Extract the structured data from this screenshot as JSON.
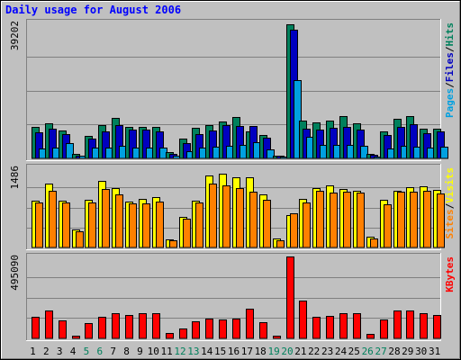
{
  "chart_data": {
    "type": "bar",
    "title": "Daily usage for August 2006",
    "days": [
      "1",
      "2",
      "3",
      "4",
      "5",
      "6",
      "7",
      "8",
      "9",
      "10",
      "11",
      "12",
      "13",
      "14",
      "15",
      "16",
      "17",
      "18",
      "19",
      "20",
      "21",
      "22",
      "23",
      "24",
      "25",
      "26",
      "27",
      "28",
      "29",
      "30",
      "31"
    ],
    "weekend_days": [
      "5",
      "6",
      "12",
      "13",
      "19",
      "20",
      "26",
      "27"
    ],
    "panels": [
      {
        "id": "hits",
        "ymax": 39202,
        "ymax_label": "39202",
        "legend": [
          {
            "text": "Pages",
            "color": "#00a0e0"
          },
          {
            "text": "Files",
            "color": "#0000c0"
          },
          {
            "text": "Hits",
            "color": "#00805c"
          }
        ],
        "series": [
          {
            "name": "Hits",
            "color": "#00805c",
            "values": [
              9000,
              10000,
              8000,
              1200,
              6600,
              9600,
              11600,
              9000,
              9100,
              9100,
              1800,
              5600,
              8800,
              9600,
              10600,
              12000,
              7800,
              6800,
              900,
              38800,
              10800,
              10500,
              10800,
              12100,
              10100,
              1200,
              7700,
              11300,
              12200,
              8500,
              8600
            ]
          },
          {
            "name": "Files",
            "color": "#0000c0",
            "values": [
              7400,
              8500,
              7000,
              900,
              5700,
              7800,
              9700,
              8200,
              8300,
              7700,
              1400,
              4400,
              7100,
              8100,
              9500,
              9400,
              9300,
              5900,
              700,
              37000,
              8600,
              8400,
              8700,
              9000,
              8300,
              1000,
              6700,
              9000,
              9900,
              7300,
              7800
            ]
          },
          {
            "name": "Pages",
            "color": "#00a0e0",
            "values": [
              2900,
              3100,
              4400,
              700,
              3000,
              3100,
              3600,
              3100,
              3200,
              3100,
              900,
              2100,
              3000,
              3300,
              3700,
              3800,
              4600,
              2600,
              500,
              22500,
              6200,
              3900,
              3900,
              4000,
              3700,
              600,
              2800,
              3700,
              3500,
              3000,
              3500
            ]
          }
        ]
      },
      {
        "id": "visits",
        "ymax": 1486,
        "ymax_label": "1486",
        "legend": [
          {
            "text": "Sites",
            "color": "#ff8000"
          },
          {
            "text": "Visits",
            "color": "#ffff00"
          }
        ],
        "series": [
          {
            "name": "Visits",
            "color": "#ffff00",
            "values": [
              860,
              1190,
              860,
              330,
              880,
              1230,
              1100,
              850,
              900,
              930,
              150,
              570,
              860,
              1340,
              1370,
              1310,
              1300,
              990,
              160,
              600,
              900,
              1100,
              1150,
              1080,
              1050,
              200,
              890,
              1060,
              1120,
              1140,
              1070
            ]
          },
          {
            "name": "Sites",
            "color": "#ff8000",
            "values": [
              840,
              1060,
              830,
              300,
              830,
              1090,
              980,
              810,
              820,
              850,
              130,
              530,
              840,
              1190,
              1160,
              1110,
              1040,
              890,
              140,
              630,
              830,
              1050,
              1020,
              1040,
              1020,
              170,
              800,
              1030,
              1040,
              1060,
              1010
            ]
          }
        ]
      },
      {
        "id": "kbytes",
        "ymax": 495090,
        "ymax_label": "495090",
        "legend": [
          {
            "text": "KBytes",
            "color": "#ff0000"
          }
        ],
        "series": [
          {
            "name": "KBytes",
            "color": "#ff0000",
            "values": [
              130000,
              170000,
              110000,
              17000,
              95000,
              130000,
              150000,
              140000,
              150000,
              150000,
              30000,
              60000,
              105000,
              120000,
              115000,
              120000,
              180000,
              100000,
              17000,
              495090,
              230000,
              130000,
              135000,
              150000,
              155000,
              28000,
              115000,
              170000,
              170000,
              155000,
              140000
            ]
          }
        ]
      }
    ]
  }
}
